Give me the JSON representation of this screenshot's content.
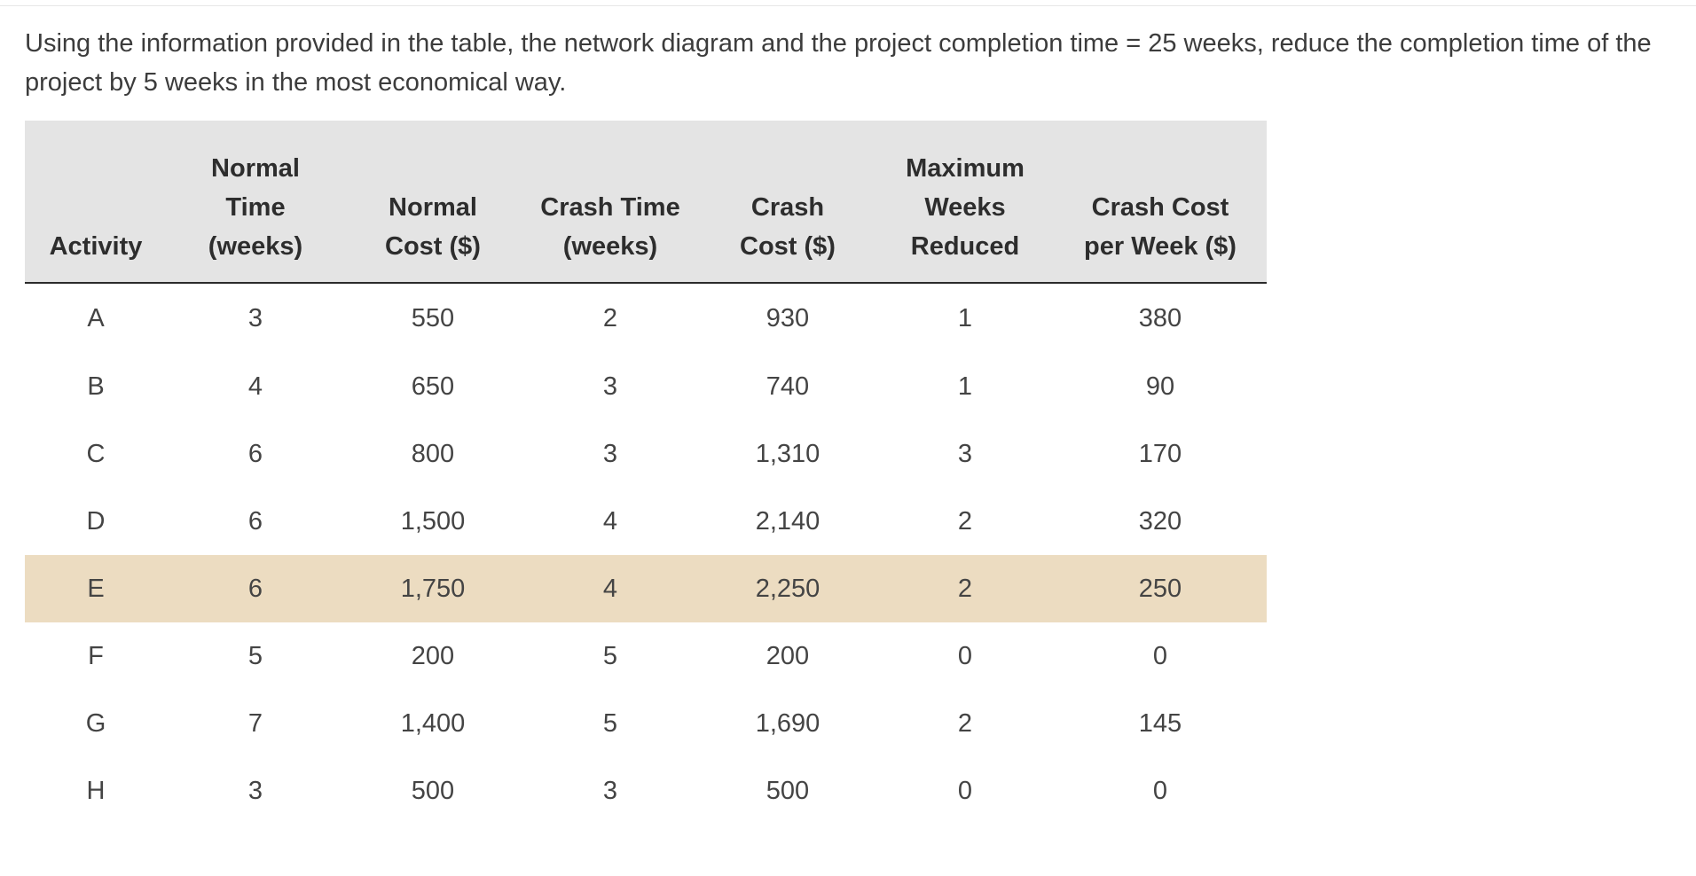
{
  "question": "Using the information provided in the table, the network diagram and the project completion time = 25 weeks, reduce the completion time of the project by 5 weeks in the most economical way.",
  "table": {
    "headers": [
      [
        "Activity"
      ],
      [
        "Normal",
        "Time",
        "(weeks)"
      ],
      [
        "Normal",
        "Cost ($)"
      ],
      [
        "Crash Time",
        "(weeks)"
      ],
      [
        "Crash",
        "Cost ($)"
      ],
      [
        "Maximum",
        "Weeks",
        "Reduced"
      ],
      [
        "Crash Cost",
        "per Week ($)"
      ]
    ],
    "highlight_color": "#ecdcc1",
    "header_background": "#e4e4e4",
    "highlighted_row": "E",
    "rows": [
      [
        "A",
        "3",
        "550",
        "2",
        "930",
        "1",
        "380"
      ],
      [
        "B",
        "4",
        "650",
        "3",
        "740",
        "1",
        "90"
      ],
      [
        "C",
        "6",
        "800",
        "3",
        "1,310",
        "3",
        "170"
      ],
      [
        "D",
        "6",
        "1,500",
        "4",
        "2,140",
        "2",
        "320"
      ],
      [
        "E",
        "6",
        "1,750",
        "4",
        "2,250",
        "2",
        "250"
      ],
      [
        "F",
        "5",
        "200",
        "5",
        "200",
        "0",
        "0"
      ],
      [
        "G",
        "7",
        "1,400",
        "5",
        "1,690",
        "2",
        "145"
      ],
      [
        "H",
        "3",
        "500",
        "3",
        "500",
        "0",
        "0"
      ]
    ]
  }
}
